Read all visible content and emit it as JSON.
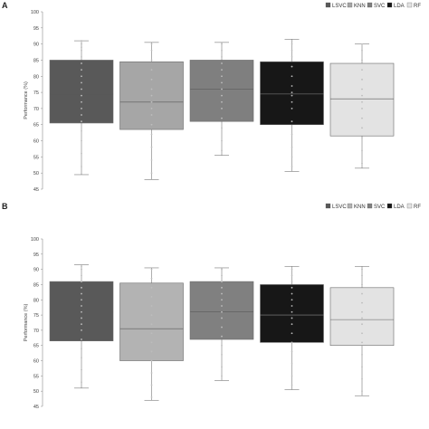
{
  "chart_data": [
    {
      "panel": "A",
      "type": "box",
      "title": "",
      "xlabel": "",
      "ylabel": "Performance (%)",
      "ylim": [
        45,
        100
      ],
      "yticks": [
        45,
        50,
        55,
        60,
        65,
        70,
        75,
        80,
        85,
        90,
        95,
        100
      ],
      "grid": false,
      "legend_position": "top-right",
      "categories": [
        "LSVC",
        "KNN",
        "SVC",
        "LDA",
        "RF"
      ],
      "series": [
        {
          "name": "LSVC",
          "color": "#595959",
          "min": 49.5,
          "q1": 65.5,
          "median": 74.5,
          "q3": 85,
          "max": 91,
          "points": [
            52,
            56,
            60,
            63,
            66,
            68,
            70,
            72,
            74,
            76,
            78,
            80,
            82,
            84,
            86,
            88,
            89,
            90,
            91
          ]
        },
        {
          "name": "KNN",
          "color": "#a6a6a6",
          "min": 48,
          "q1": 63.5,
          "median": 72,
          "q3": 84.5,
          "max": 90.5,
          "points": [
            50,
            54,
            58,
            62,
            65,
            68,
            70,
            72,
            74,
            76,
            79,
            82,
            85,
            88,
            90
          ]
        },
        {
          "name": "SVC",
          "color": "#7f7f7f",
          "min": 55.5,
          "q1": 66,
          "median": 76,
          "q3": 85,
          "max": 90.5,
          "points": [
            57,
            60,
            64,
            67,
            70,
            72,
            74,
            76,
            78,
            80,
            82,
            84,
            86,
            88,
            90
          ]
        },
        {
          "name": "LDA",
          "color": "#171717",
          "min": 50.5,
          "q1": 65,
          "median": 74.5,
          "q3": 84.5,
          "max": 91.5,
          "points": [
            52,
            55,
            58,
            62,
            66,
            70,
            72,
            74,
            75,
            77,
            80,
            83,
            86,
            88,
            90,
            91
          ]
        },
        {
          "name": "RF",
          "color": "#e3e3e3",
          "min": 51.5,
          "q1": 61.5,
          "median": 73,
          "q3": 84,
          "max": 90,
          "points": [
            53,
            57,
            61,
            64,
            67,
            70,
            72,
            74,
            76,
            79,
            82,
            85,
            88,
            90
          ]
        }
      ]
    },
    {
      "panel": "B",
      "type": "box",
      "title": "",
      "xlabel": "",
      "ylabel": "Performance (%)",
      "ylim": [
        45,
        100
      ],
      "yticks": [
        45,
        50,
        55,
        60,
        65,
        70,
        75,
        80,
        85,
        90,
        95,
        100
      ],
      "grid": false,
      "legend_position": "top-right",
      "categories": [
        "LSVC",
        "KNN",
        "SVC",
        "LDA",
        "RF"
      ],
      "series": [
        {
          "name": "LSVC",
          "color": "#595959",
          "min": 51,
          "q1": 66.5,
          "median": 76,
          "q3": 86,
          "max": 91.5,
          "points": [
            53,
            57,
            61,
            64,
            67,
            70,
            72,
            74,
            76,
            78,
            80,
            82,
            84,
            86,
            88,
            90,
            91
          ]
        },
        {
          "name": "KNN",
          "color": "#b3b3b3",
          "min": 47,
          "q1": 60,
          "median": 70.5,
          "q3": 85.5,
          "max": 90.5,
          "points": [
            48,
            52,
            56,
            60,
            63,
            66,
            69,
            72,
            75,
            78,
            81,
            84,
            87,
            90
          ]
        },
        {
          "name": "SVC",
          "color": "#808080",
          "min": 53.5,
          "q1": 67,
          "median": 76,
          "q3": 86,
          "max": 90.5,
          "points": [
            55,
            58,
            62,
            65,
            68,
            71,
            74,
            76,
            78,
            80,
            82,
            84,
            86,
            88,
            90
          ]
        },
        {
          "name": "LDA",
          "color": "#171717",
          "min": 50.5,
          "q1": 66,
          "median": 75,
          "q3": 85,
          "max": 91,
          "points": [
            52,
            55,
            59,
            63,
            66,
            69,
            72,
            74,
            76,
            78,
            80,
            82,
            84,
            86,
            88,
            90
          ]
        },
        {
          "name": "RF",
          "color": "#e3e3e3",
          "min": 48.5,
          "q1": 65,
          "median": 73.5,
          "q3": 84,
          "max": 91,
          "points": [
            50,
            54,
            58,
            62,
            66,
            69,
            72,
            74,
            76,
            79,
            82,
            85,
            88,
            90
          ]
        }
      ]
    }
  ]
}
